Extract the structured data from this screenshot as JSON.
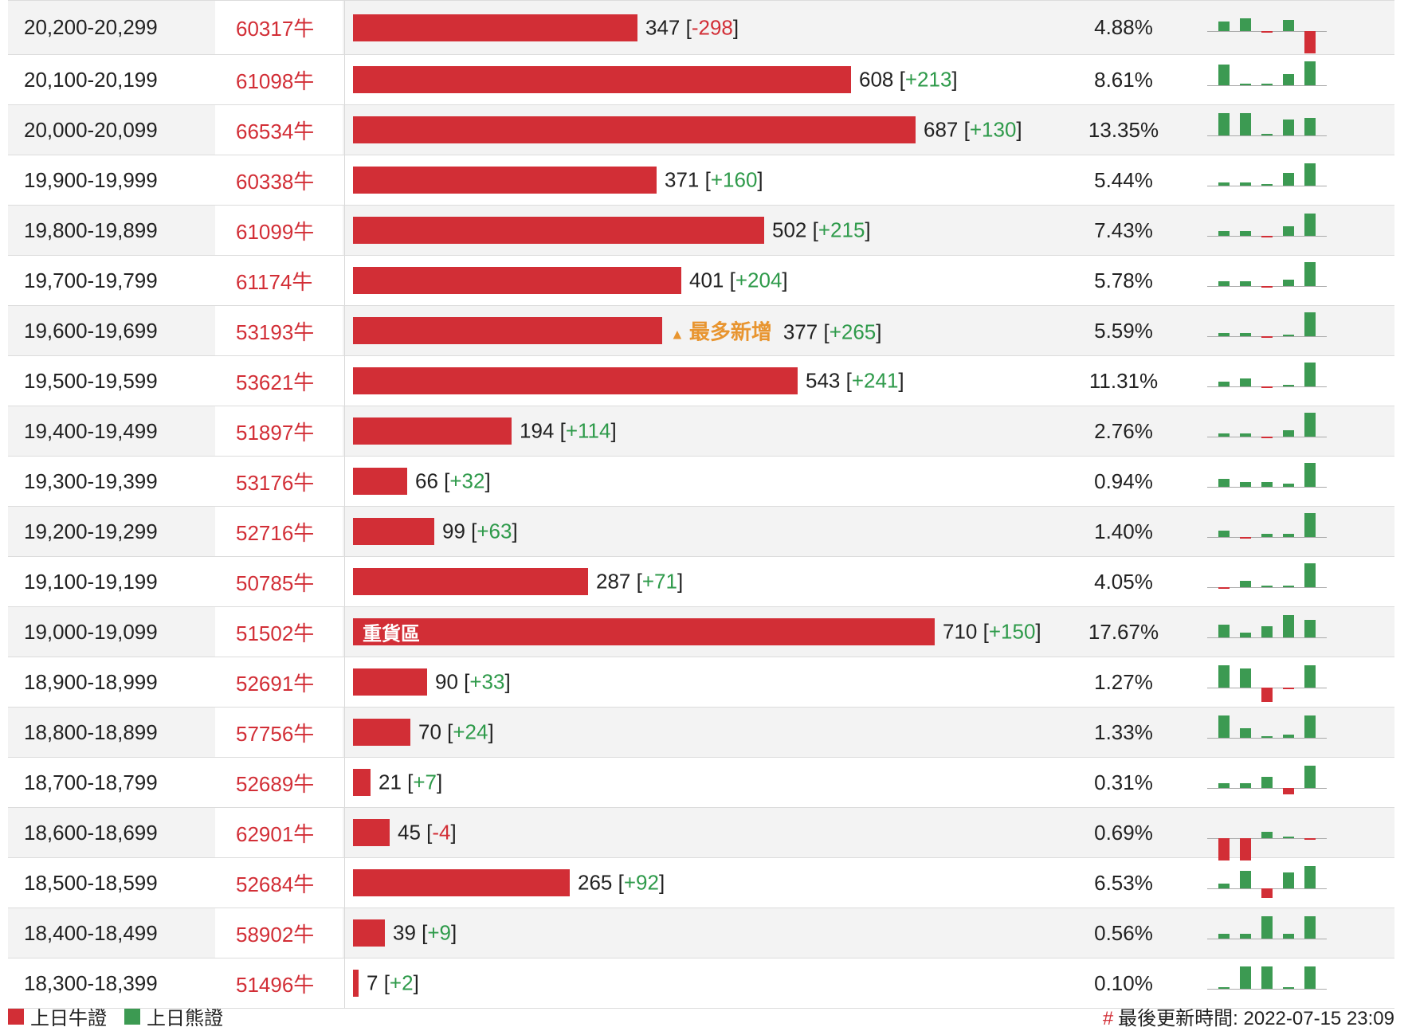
{
  "colors": {
    "bull": "#d22e36",
    "bear": "#3c9a52",
    "positive": "#2e9a4a",
    "tag": "#e89530"
  },
  "rows": [
    {
      "range": "20,200-20,299",
      "code": "60317牛",
      "count": "347",
      "change": "-298",
      "pct": "4.88%",
      "bar": 347,
      "spark": [
        6,
        8,
        -1,
        7,
        -14
      ]
    },
    {
      "range": "20,100-20,199",
      "code": "61098牛",
      "count": "608",
      "change": "+213",
      "pct": "8.61%",
      "bar": 608,
      "spark": [
        13,
        1,
        1,
        7,
        15
      ]
    },
    {
      "range": "20,000-20,099",
      "code": "66534牛",
      "count": "687",
      "change": "+130",
      "pct": "13.35%",
      "bar": 687,
      "spark": [
        14,
        14,
        1,
        10,
        11
      ]
    },
    {
      "range": "19,900-19,999",
      "code": "60338牛",
      "count": "371",
      "change": "+160",
      "pct": "5.44%",
      "bar": 371,
      "spark": [
        2,
        2,
        1,
        8,
        14
      ]
    },
    {
      "range": "19,800-19,899",
      "code": "61099牛",
      "count": "502",
      "change": "+215",
      "pct": "7.43%",
      "bar": 502,
      "spark": [
        3,
        3,
        -1,
        6,
        14
      ]
    },
    {
      "range": "19,700-19,799",
      "code": "61174牛",
      "count": "401",
      "change": "+204",
      "pct": "5.78%",
      "bar": 401,
      "spark": [
        3,
        3,
        -1,
        4,
        15
      ]
    },
    {
      "range": "19,600-19,699",
      "code": "53193牛",
      "count": "377",
      "change": "+265",
      "pct": "5.59%",
      "bar": 377,
      "tag": "最多新增",
      "spark": [
        2,
        2,
        -1,
        1,
        15
      ]
    },
    {
      "range": "19,500-19,599",
      "code": "53621牛",
      "count": "543",
      "change": "+241",
      "pct": "11.31%",
      "bar": 543,
      "spark": [
        3,
        5,
        -1,
        1,
        15
      ]
    },
    {
      "range": "19,400-19,499",
      "code": "51897牛",
      "count": "194",
      "change": "+114",
      "pct": "2.76%",
      "bar": 194,
      "spark": [
        2,
        2,
        -1,
        4,
        15
      ]
    },
    {
      "range": "19,300-19,399",
      "code": "53176牛",
      "count": "66",
      "change": "+32",
      "pct": "0.94%",
      "bar": 66,
      "spark": [
        5,
        3,
        3,
        2,
        15
      ]
    },
    {
      "range": "19,200-19,299",
      "code": "52716牛",
      "count": "99",
      "change": "+63",
      "pct": "1.40%",
      "bar": 99,
      "spark": [
        4,
        -1,
        2,
        2,
        15
      ]
    },
    {
      "range": "19,100-19,199",
      "code": "50785牛",
      "count": "287",
      "change": "+71",
      "pct": "4.05%",
      "bar": 287,
      "spark": [
        -1,
        4,
        1,
        1,
        15
      ]
    },
    {
      "range": "19,000-19,099",
      "code": "51502牛",
      "count": "710",
      "change": "+150",
      "pct": "17.67%",
      "bar": 710,
      "label": "重貨區",
      "spark": [
        8,
        3,
        7,
        14,
        11
      ]
    },
    {
      "range": "18,900-18,999",
      "code": "52691牛",
      "count": "90",
      "change": "+33",
      "pct": "1.27%",
      "bar": 90,
      "spark": [
        14,
        12,
        -9,
        -1,
        14
      ]
    },
    {
      "range": "18,800-18,899",
      "code": "57756牛",
      "count": "70",
      "change": "+24",
      "pct": "1.33%",
      "bar": 70,
      "spark": [
        14,
        6,
        0,
        2,
        14
      ]
    },
    {
      "range": "18,700-18,799",
      "code": "52689牛",
      "count": "21",
      "change": "+7",
      "pct": "0.31%",
      "bar": 21,
      "spark": [
        3,
        3,
        7,
        -4,
        14
      ]
    },
    {
      "range": "18,600-18,699",
      "code": "62901牛",
      "count": "45",
      "change": "-4",
      "pct": "0.69%",
      "bar": 45,
      "spark": [
        -14,
        -14,
        4,
        0,
        -1
      ]
    },
    {
      "range": "18,500-18,599",
      "code": "52684牛",
      "count": "265",
      "change": "+92",
      "pct": "6.53%",
      "bar": 265,
      "spark": [
        3,
        11,
        -6,
        10,
        14
      ]
    },
    {
      "range": "18,400-18,499",
      "code": "58902牛",
      "count": "39",
      "change": "+9",
      "pct": "0.56%",
      "bar": 39,
      "spark": [
        3,
        3,
        14,
        3,
        14
      ]
    },
    {
      "range": "18,300-18,399",
      "code": "51496牛",
      "count": "7",
      "change": "+2",
      "pct": "0.10%",
      "bar": 7,
      "spark": [
        0,
        14,
        14,
        0,
        14
      ]
    }
  ],
  "legend": {
    "bull_label": "上日牛證",
    "bear_label": "上日熊證"
  },
  "footer": {
    "hash": "#",
    "updated": "最後更新時間: 2022-07-15 23:09"
  }
}
